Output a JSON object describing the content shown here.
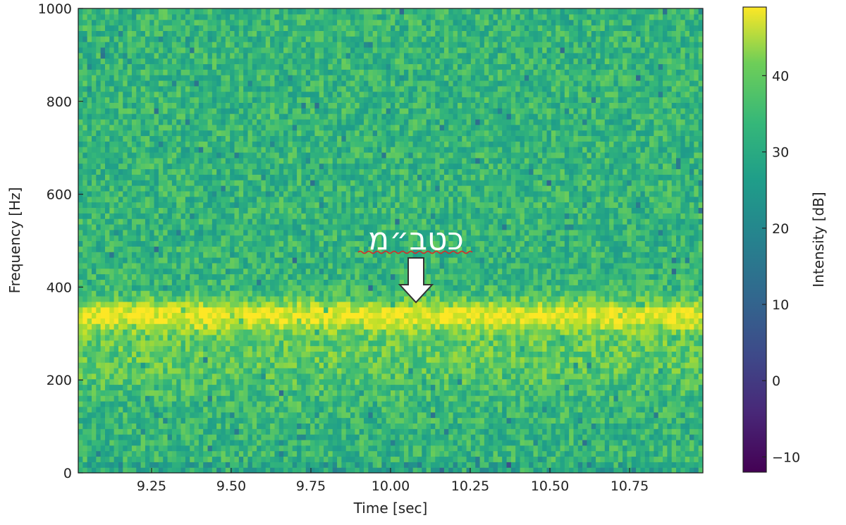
{
  "chart_data": {
    "type": "heatmap",
    "title": "",
    "xlabel": "Time [sec]",
    "ylabel": "Frequency [Hz]",
    "xlim": [
      9.02,
      10.98
    ],
    "ylim": [
      0,
      1000
    ],
    "x_ticks": [
      "9.25",
      "9.50",
      "9.75",
      "10.00",
      "10.25",
      "10.50",
      "10.75"
    ],
    "y_ticks": [
      "0",
      "200",
      "400",
      "600",
      "800",
      "1000"
    ],
    "colorbar": {
      "label": "Intensity [dB]",
      "range": [
        -12,
        49
      ],
      "ticks": [
        "−10",
        "0",
        "10",
        "20",
        "30",
        "40"
      ],
      "tick_values": [
        -10,
        0,
        10,
        20,
        30,
        40
      ],
      "colormap": "viridis"
    },
    "dominant_band": {
      "frequency_hz": 340,
      "intensity_db": 46
    },
    "background_intensity_db": 28,
    "annotation": {
      "text": "כטב״מ",
      "points_to": {
        "time": 10.08,
        "frequency": 370
      }
    },
    "grid": false
  }
}
